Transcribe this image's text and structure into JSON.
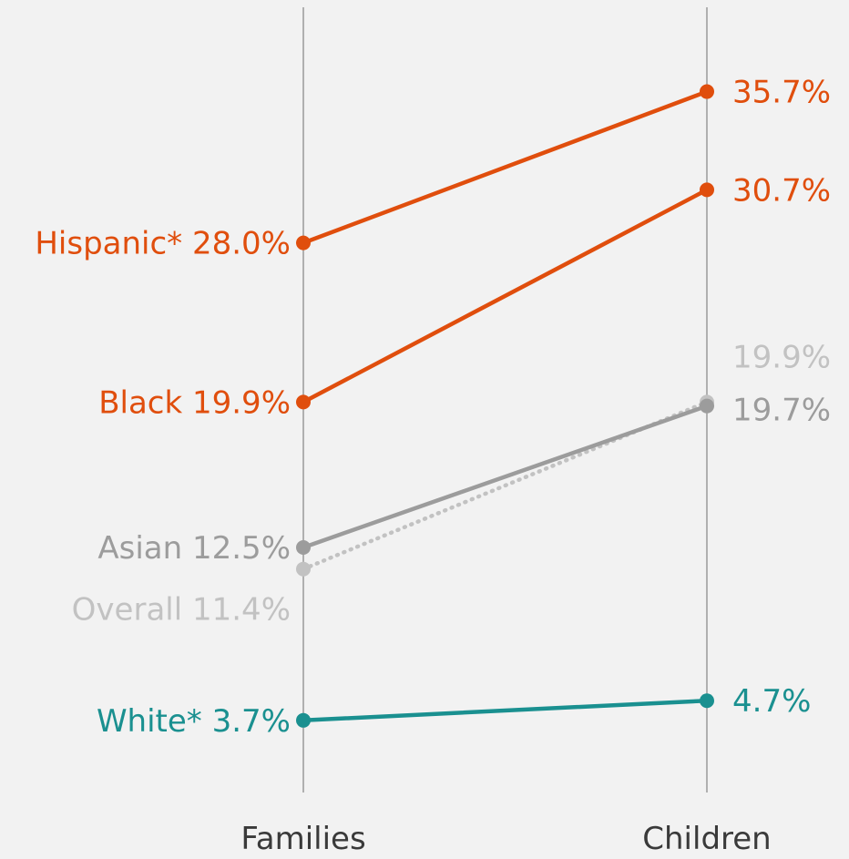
{
  "colors": {
    "background": "#f2f2f2",
    "axis": "#9a9a9a",
    "highlight": "#e04e0d",
    "asian": "#9c9c9c",
    "overall": "#c2c2c2",
    "white": "#1a9090",
    "axis_label": "#3a3a3a"
  },
  "chart_data": {
    "type": "line",
    "title": "",
    "xlabel": "",
    "ylabel": "",
    "categories": [
      "Families",
      "Children"
    ],
    "ylim": [
      0,
      40
    ],
    "grid": false,
    "legend": "none",
    "series": [
      {
        "name": "Hispanic*",
        "values": [
          28.0,
          35.7
        ],
        "left_label": "Hispanic* 28.0%",
        "right_label": "35.7%",
        "color": "#e04e0d",
        "style": "solid"
      },
      {
        "name": "Black",
        "values": [
          19.9,
          30.7
        ],
        "left_label": "Black 19.9%",
        "right_label": "30.7%",
        "color": "#e04e0d",
        "style": "solid"
      },
      {
        "name": "Asian",
        "values": [
          12.5,
          19.7
        ],
        "left_label": "Asian 12.5%",
        "right_label": "19.7%",
        "color": "#9c9c9c",
        "style": "solid"
      },
      {
        "name": "Overall",
        "values": [
          11.4,
          19.9
        ],
        "left_label": "Overall 11.4%",
        "right_label": "19.9%",
        "color": "#c2c2c2",
        "style": "dotted"
      },
      {
        "name": "White*",
        "values": [
          3.7,
          4.7
        ],
        "left_label": "White* 3.7%",
        "right_label": "4.7%",
        "color": "#1a9090",
        "style": "solid"
      }
    ]
  }
}
